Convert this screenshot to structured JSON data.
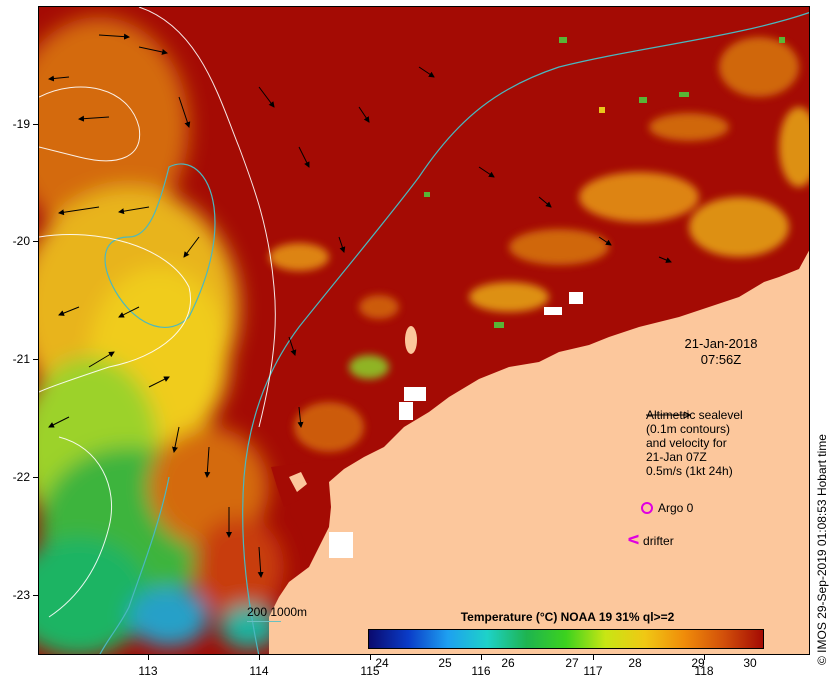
{
  "map": {
    "date_line1": "21-Jan-2018",
    "date_line2": "07:56Z",
    "lat_ticks": [
      "-19",
      "-20",
      "-21",
      "-22",
      "-23"
    ],
    "lon_ticks": [
      "113",
      "114",
      "115",
      "116",
      "117",
      "118"
    ]
  },
  "legend": {
    "line1": "Altimetric sealevel",
    "line2": "(0.1m contours)",
    "line3": "and velocity for",
    "line4": "21-Jan 07Z",
    "line5": "0.5m/s (1kt 24h)",
    "argo_label": "Argo 0",
    "drifter_label": "drifter",
    "marker_color": "#e000e0"
  },
  "colorbar": {
    "title": "Temperature (°C) NOAA 19 31% ql>=2",
    "labels": [
      "24",
      "25",
      "26",
      "27",
      "28",
      "29",
      "30"
    ]
  },
  "depth_legend": "200  1000m",
  "credit": "© IMOS 29-Sep-2019 01:08:53 Hobart time"
}
